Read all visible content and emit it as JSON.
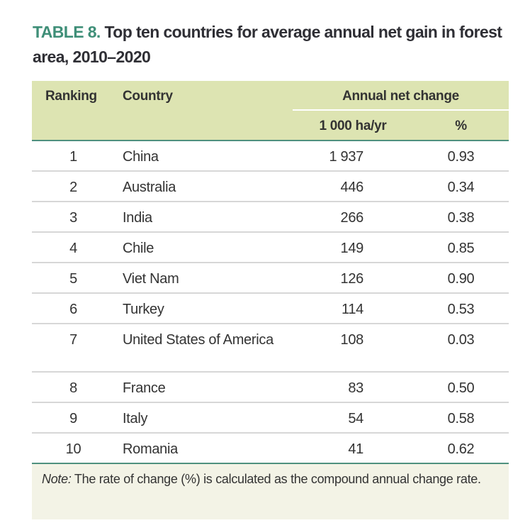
{
  "title": {
    "label": "TABLE 8.",
    "text": "Top ten countries for average annual net gain in forest area, 2010–2020"
  },
  "colors": {
    "accent": "#3f8f78",
    "header_bg": "#dde4b2",
    "rule": "#4f917f",
    "note_bg": "#f3f3e6"
  },
  "table": {
    "headers": {
      "ranking": "Ranking",
      "country": "Country",
      "annual_net_change": "Annual net change",
      "unit_ha": "1 000 ha/yr",
      "unit_pct": "%"
    },
    "rows": [
      {
        "rank": "1",
        "country": "China",
        "ha": "1 937",
        "pct": "0.93"
      },
      {
        "rank": "2",
        "country": "Australia",
        "ha": "446",
        "pct": "0.34"
      },
      {
        "rank": "3",
        "country": "India",
        "ha": "266",
        "pct": "0.38"
      },
      {
        "rank": "4",
        "country": "Chile",
        "ha": "149",
        "pct": "0.85"
      },
      {
        "rank": "5",
        "country": "Viet Nam",
        "ha": "126",
        "pct": "0.90"
      },
      {
        "rank": "6",
        "country": "Turkey",
        "ha": "114",
        "pct": "0.53"
      },
      {
        "rank": "7",
        "country": "United States of America",
        "ha": "108",
        "pct": "0.03"
      },
      {
        "rank": "8",
        "country": "France",
        "ha": "83",
        "pct": "0.50"
      },
      {
        "rank": "9",
        "country": "Italy",
        "ha": "54",
        "pct": "0.58"
      },
      {
        "rank": "10",
        "country": "Romania",
        "ha": "41",
        "pct": "0.62"
      }
    ]
  },
  "note": {
    "label": "Note:",
    "text": " The rate of change (%) is calculated as the compound annual change rate."
  }
}
